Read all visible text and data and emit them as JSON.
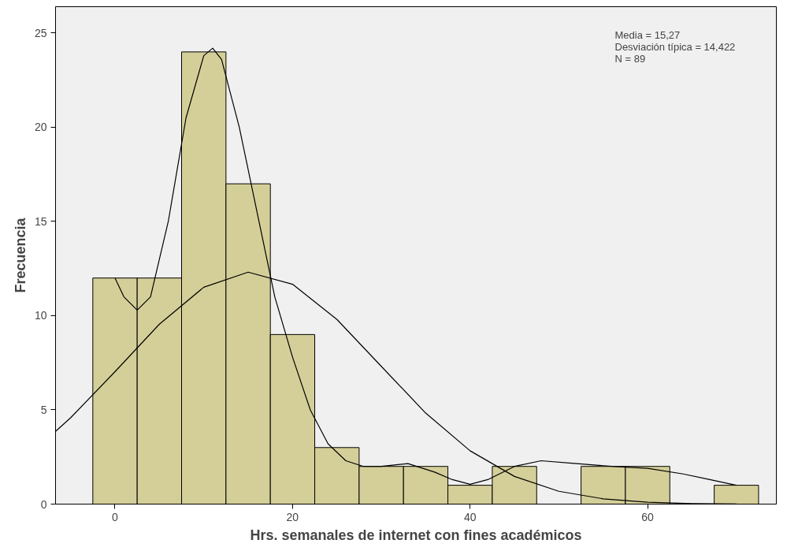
{
  "chart_data": {
    "type": "histogram",
    "xlabel": "Hrs. semanales de internet con fines académicos",
    "ylabel": "Frecuencia",
    "bins": [
      -2.5,
      2.5,
      7.5,
      12.5,
      17.5,
      22.5,
      27.5,
      32.5,
      37.5,
      42.5,
      47.5,
      52.5,
      57.5,
      62.5,
      67.5,
      72.5
    ],
    "values": [
      12,
      12,
      24,
      17,
      9,
      3,
      2,
      2,
      1,
      2,
      0,
      2,
      2,
      0,
      1
    ],
    "color": "#d4cf98",
    "series": [
      {
        "type": "line",
        "color": "#000000",
        "x": [
          -6.7,
          -5,
          0,
          5,
          10,
          15,
          20,
          25,
          30,
          35,
          40,
          45,
          50,
          55,
          60,
          65,
          70
        ],
        "values": [
          3.86,
          4.58,
          7.03,
          9.55,
          11.51,
          12.31,
          11.67,
          9.8,
          7.31,
          4.83,
          2.83,
          1.47,
          0.68,
          0.28,
          0.1,
          0.03,
          0.01
        ]
      },
      {
        "type": "line",
        "color": "#000000",
        "x": [
          0,
          1,
          2.5,
          4,
          6,
          8,
          10,
          11,
          12,
          14,
          16,
          18,
          20,
          22,
          24,
          26,
          28,
          30,
          33,
          36,
          38,
          40,
          42,
          45,
          48,
          52,
          56,
          60,
          64,
          67,
          70
        ],
        "values": [
          12,
          11,
          10.3,
          11,
          15,
          20.5,
          23.8,
          24.2,
          23.6,
          20,
          15.5,
          11,
          7.8,
          5,
          3.2,
          2.3,
          2.0,
          2.0,
          2.15,
          1.7,
          1.3,
          1.05,
          1.3,
          2.0,
          2.3,
          2.15,
          2.0,
          1.9,
          1.6,
          1.3,
          1.0
        ]
      }
    ],
    "xlim": [
      -6.7,
      74.5
    ],
    "ylim": [
      0,
      26.4
    ],
    "xticks": [
      0,
      20,
      40,
      60
    ],
    "yticks": [
      0,
      5,
      10,
      15,
      20,
      25
    ],
    "grid": false,
    "annotations": [
      "Media = 15,27",
      "Desviación típica = 14,422",
      "N = 89"
    ]
  }
}
